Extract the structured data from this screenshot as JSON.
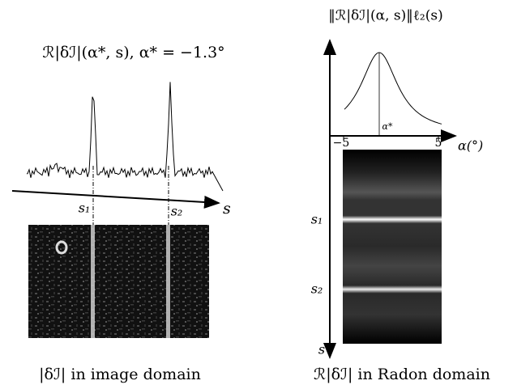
{
  "left": {
    "title": "ℛ|δℐ|(α*, s), α* = −1.3°",
    "s1": "s₁",
    "s2": "s₂",
    "axis": "s",
    "caption": "|δℐ| in image domain"
  },
  "right": {
    "title": "‖ℛ|δℐ|(α, s)‖ℓ₂(s)",
    "alpha_star": "α*",
    "tick_min": "−5",
    "tick_max": "5",
    "x_axis": "α(°)",
    "s1": "s₁",
    "s2": "s₂",
    "y_axis": "s",
    "caption": "ℛ|δℐ| in Radon domain"
  }
}
